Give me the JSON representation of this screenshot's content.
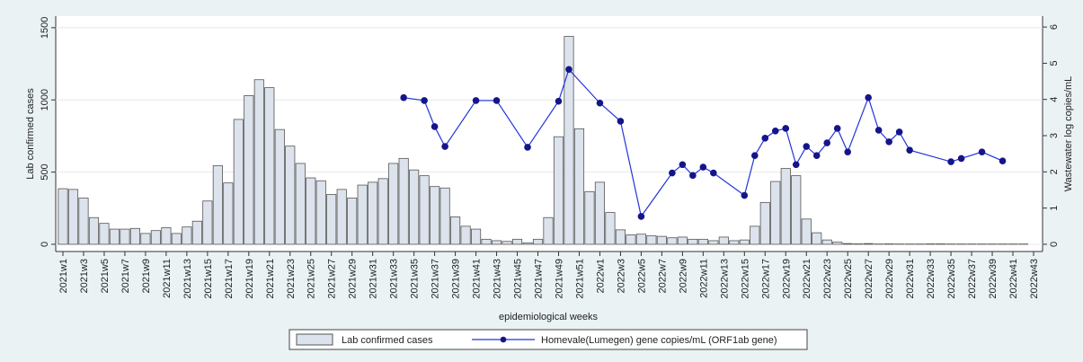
{
  "chart_data": {
    "type": "bar",
    "xlabel": "epidemiological weeks",
    "ylabel": "Lab confirmed cases",
    "y2label": "Wastewater log copies/mL",
    "categories": [
      "2021w1",
      null,
      "2021w3",
      null,
      "2021w5",
      null,
      "2021w7",
      null,
      "2021w9",
      null,
      "2021w11",
      null,
      "2021w13",
      null,
      "2021w15",
      null,
      "2021w17",
      null,
      "2021w19",
      null,
      "2021w21",
      null,
      "2021w23",
      null,
      "2021w25",
      null,
      "2021w27",
      null,
      "2021w29",
      null,
      "2021w31",
      null,
      "2021w33",
      null,
      "2021w35",
      null,
      "2021w37",
      null,
      "2021w39",
      null,
      "2021w41",
      null,
      "2021w43",
      null,
      "2021w45",
      null,
      "2021w47",
      null,
      "2021w49",
      null,
      "2021w51",
      null,
      "2022w1",
      null,
      "2022w3",
      null,
      "2022w5",
      null,
      "2022w7",
      null,
      "2022w9",
      null,
      "2022w11",
      null,
      "2022w13",
      null,
      "2022w15",
      null,
      "2022w17",
      null,
      "2022w19",
      null,
      "2022w21",
      null,
      "2022w23",
      null,
      "2022w25",
      null,
      "2022w27",
      null,
      "2022w29",
      null,
      "2022w31",
      null,
      "2022w33",
      null,
      "2022w35",
      null,
      "2022w37",
      null,
      "2022w39",
      null,
      "2022w41",
      null,
      "2022w43"
    ],
    "series": [
      {
        "name": "Lab confirmed cases",
        "type": "bar",
        "color": "#dde3ec",
        "edge": "#555555",
        "values": [
          385,
          380,
          320,
          185,
          145,
          105,
          105,
          110,
          75,
          95,
          115,
          75,
          120,
          160,
          300,
          545,
          425,
          865,
          1030,
          1140,
          1085,
          795,
          680,
          560,
          460,
          440,
          345,
          380,
          320,
          410,
          430,
          455,
          560,
          595,
          515,
          475,
          400,
          390,
          190,
          125,
          105,
          35,
          25,
          20,
          35,
          10,
          35,
          185,
          745,
          1440,
          800,
          365,
          430,
          220,
          100,
          65,
          70,
          60,
          55,
          45,
          50,
          35,
          35,
          25,
          50,
          25,
          30,
          125,
          290,
          435,
          525,
          475,
          175,
          80,
          30,
          15,
          5,
          3,
          5,
          2,
          3,
          2,
          2,
          2,
          3,
          3,
          2,
          2,
          2,
          2,
          2,
          2,
          2,
          2,
          0
        ]
      },
      {
        "name": "Homevale(Lumegen) gene copies/mL (ORF1ab gene)",
        "type": "line",
        "axis": "y2",
        "color": "#2233dd",
        "marker_color": "#15158a",
        "connect_gaps": true,
        "values": [
          null,
          null,
          null,
          null,
          null,
          null,
          null,
          null,
          null,
          null,
          null,
          null,
          null,
          null,
          null,
          null,
          null,
          null,
          null,
          null,
          null,
          null,
          null,
          null,
          null,
          null,
          null,
          null,
          null,
          null,
          null,
          null,
          null,
          4.05,
          null,
          3.97,
          3.25,
          2.7,
          null,
          null,
          3.97,
          null,
          3.97,
          null,
          null,
          2.68,
          null,
          null,
          3.95,
          4.83,
          null,
          null,
          3.9,
          null,
          3.4,
          null,
          0.77,
          null,
          null,
          1.97,
          2.2,
          1.9,
          2.13,
          1.97,
          null,
          null,
          1.35,
          2.45,
          2.93,
          3.13,
          3.2,
          2.2,
          2.7,
          2.45,
          2.8,
          3.2,
          2.55,
          null,
          4.05,
          3.15,
          2.83,
          3.1,
          2.6,
          null,
          null,
          null,
          2.28,
          2.37,
          null,
          2.55,
          null,
          2.3,
          null,
          null,
          null
        ]
      }
    ],
    "ylim": [
      -50,
      1580
    ],
    "yticks": [
      0,
      500,
      1000,
      1500
    ],
    "y2lim": [
      -0.2,
      6.3
    ],
    "y2ticks": [
      0,
      1,
      2,
      3,
      4,
      5,
      6
    ],
    "grid": true,
    "legend": "bottom"
  }
}
